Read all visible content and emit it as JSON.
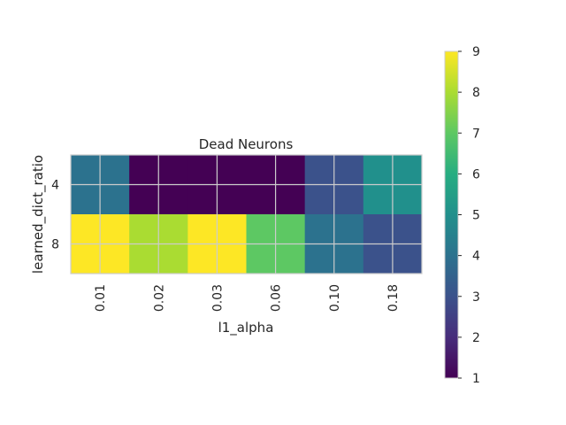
{
  "chart_data": {
    "type": "heatmap",
    "title": "Dead Neurons",
    "xlabel": "l1_alpha",
    "ylabel": "learned_dict_ratio",
    "x_categories": [
      "0.01",
      "0.02",
      "0.03",
      "0.06",
      "0.10",
      "0.18"
    ],
    "y_categories": [
      "4",
      "8"
    ],
    "values": [
      [
        4,
        1,
        1,
        1,
        3,
        5
      ],
      [
        9,
        8,
        9,
        7,
        4,
        3
      ]
    ],
    "colorbar": {
      "min": 1,
      "max": 9,
      "ticks": [
        "1",
        "2",
        "3",
        "4",
        "5",
        "6",
        "7",
        "8",
        "9"
      ],
      "colormap": "viridis"
    },
    "grid": true
  }
}
